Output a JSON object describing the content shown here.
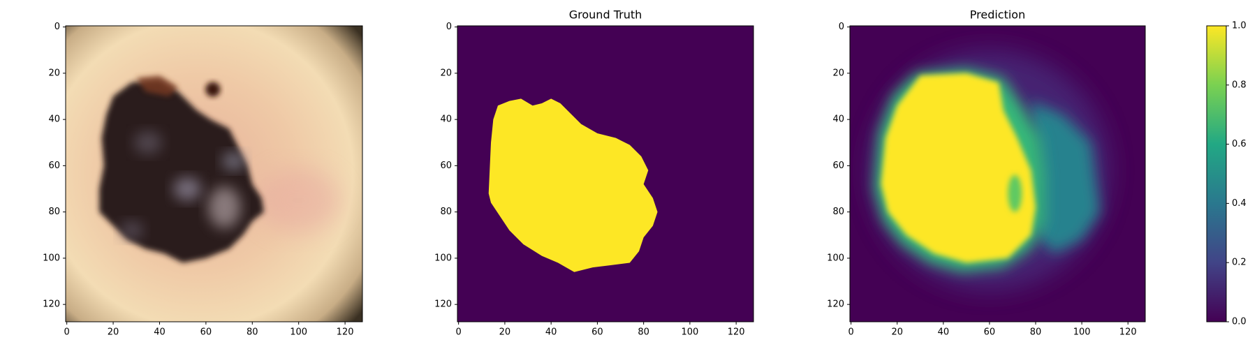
{
  "chart_data": [
    {
      "type": "image",
      "xlim": [
        -0.5,
        127.5
      ],
      "ylim": [
        127.5,
        -0.5
      ],
      "xticks": [
        0,
        20,
        40,
        60,
        80,
        100,
        120
      ],
      "yticks": [
        0,
        20,
        40,
        60,
        80,
        100,
        120
      ]
    },
    {
      "type": "image",
      "title": "Ground Truth",
      "xlim": [
        -0.5,
        127.5
      ],
      "ylim": [
        127.5,
        -0.5
      ],
      "xticks": [
        0,
        20,
        40,
        60,
        80,
        100,
        120
      ],
      "yticks": [
        0,
        20,
        40,
        60,
        80,
        100,
        120
      ]
    },
    {
      "type": "image",
      "title": "Prediction",
      "xlim": [
        -0.5,
        127.5
      ],
      "ylim": [
        127.5,
        -0.5
      ],
      "xticks": [
        0,
        20,
        40,
        60,
        80,
        100,
        120
      ],
      "yticks": [
        0,
        20,
        40,
        60,
        80,
        100,
        120
      ]
    },
    {
      "type": "colorbar",
      "ylim": [
        0,
        1
      ],
      "yticks": [
        {
          "value": 0,
          "label": "0.0"
        },
        {
          "value": 0.2,
          "label": "0.2"
        },
        {
          "value": 0.4,
          "label": "0.4"
        },
        {
          "value": 0.6,
          "label": "0.6"
        },
        {
          "value": 0.8,
          "label": "0.8"
        },
        {
          "value": 1,
          "label": "1.0"
        }
      ],
      "colors": [
        "#440154",
        "#414487",
        "#2a788e",
        "#22a884",
        "#7ad151",
        "#fde725"
      ]
    }
  ]
}
